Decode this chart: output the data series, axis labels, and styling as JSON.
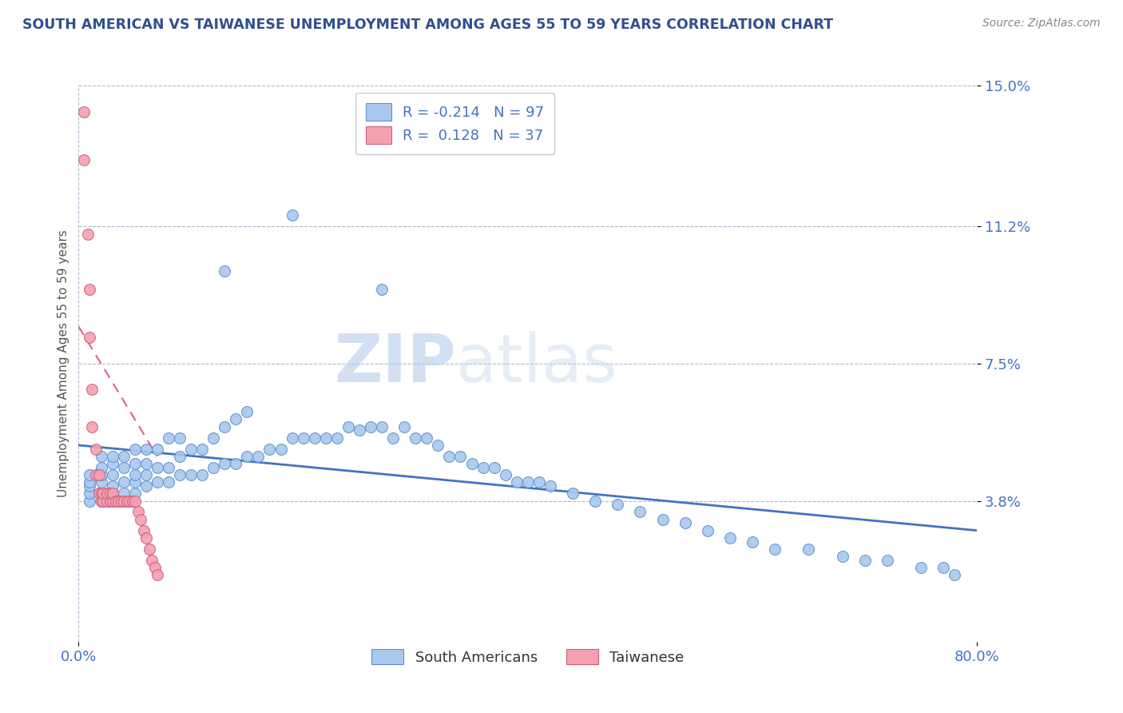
{
  "title": "SOUTH AMERICAN VS TAIWANESE UNEMPLOYMENT AMONG AGES 55 TO 59 YEARS CORRELATION CHART",
  "source_text": "Source: ZipAtlas.com",
  "watermark_zip": "ZIP",
  "watermark_atlas": "atlas",
  "ylabel": "Unemployment Among Ages 55 to 59 years",
  "xlim": [
    0.0,
    0.8
  ],
  "ylim": [
    0.0,
    0.15
  ],
  "ytick_positions": [
    0.038,
    0.075,
    0.112,
    0.15
  ],
  "ytick_labels": [
    "3.8%",
    "7.5%",
    "11.2%",
    "15.0%"
  ],
  "title_color": "#2F4F8F",
  "source_color": "#888888",
  "watermark_color": "#C8D8F0",
  "south_american_color": "#A8C8EE",
  "taiwanese_color": "#F4A0B0",
  "blue_line_color": "#4472C4",
  "pink_line_color": "#E06080",
  "legend_R_blue": "-0.214",
  "legend_N_blue": "97",
  "legend_R_pink": "0.128",
  "legend_N_pink": "37",
  "sa_x": [
    0.01,
    0.01,
    0.01,
    0.01,
    0.01,
    0.02,
    0.02,
    0.02,
    0.02,
    0.02,
    0.02,
    0.03,
    0.03,
    0.03,
    0.03,
    0.03,
    0.04,
    0.04,
    0.04,
    0.04,
    0.05,
    0.05,
    0.05,
    0.05,
    0.05,
    0.06,
    0.06,
    0.06,
    0.06,
    0.07,
    0.07,
    0.07,
    0.08,
    0.08,
    0.08,
    0.09,
    0.09,
    0.09,
    0.1,
    0.1,
    0.11,
    0.11,
    0.12,
    0.12,
    0.13,
    0.13,
    0.14,
    0.14,
    0.15,
    0.15,
    0.16,
    0.17,
    0.18,
    0.19,
    0.2,
    0.21,
    0.22,
    0.23,
    0.24,
    0.25,
    0.26,
    0.27,
    0.28,
    0.29,
    0.3,
    0.31,
    0.32,
    0.33,
    0.34,
    0.35,
    0.36,
    0.37,
    0.38,
    0.39,
    0.4,
    0.41,
    0.42,
    0.44,
    0.46,
    0.48,
    0.5,
    0.52,
    0.54,
    0.56,
    0.58,
    0.6,
    0.62,
    0.65,
    0.68,
    0.7,
    0.72,
    0.75,
    0.77,
    0.78,
    0.13,
    0.19,
    0.27
  ],
  "sa_y": [
    0.038,
    0.04,
    0.042,
    0.043,
    0.045,
    0.038,
    0.04,
    0.043,
    0.045,
    0.047,
    0.05,
    0.04,
    0.042,
    0.045,
    0.048,
    0.05,
    0.04,
    0.043,
    0.047,
    0.05,
    0.04,
    0.043,
    0.045,
    0.048,
    0.052,
    0.042,
    0.045,
    0.048,
    0.052,
    0.043,
    0.047,
    0.052,
    0.043,
    0.047,
    0.055,
    0.045,
    0.05,
    0.055,
    0.045,
    0.052,
    0.045,
    0.052,
    0.047,
    0.055,
    0.048,
    0.058,
    0.048,
    0.06,
    0.05,
    0.062,
    0.05,
    0.052,
    0.052,
    0.055,
    0.055,
    0.055,
    0.055,
    0.055,
    0.058,
    0.057,
    0.058,
    0.058,
    0.055,
    0.058,
    0.055,
    0.055,
    0.053,
    0.05,
    0.05,
    0.048,
    0.047,
    0.047,
    0.045,
    0.043,
    0.043,
    0.043,
    0.042,
    0.04,
    0.038,
    0.037,
    0.035,
    0.033,
    0.032,
    0.03,
    0.028,
    0.027,
    0.025,
    0.025,
    0.023,
    0.022,
    0.022,
    0.02,
    0.02,
    0.018,
    0.1,
    0.115,
    0.095
  ],
  "tw_x": [
    0.005,
    0.005,
    0.008,
    0.01,
    0.01,
    0.012,
    0.012,
    0.015,
    0.015,
    0.018,
    0.018,
    0.02,
    0.02,
    0.022,
    0.022,
    0.025,
    0.025,
    0.028,
    0.028,
    0.03,
    0.03,
    0.033,
    0.035,
    0.038,
    0.04,
    0.043,
    0.045,
    0.048,
    0.05,
    0.053,
    0.055,
    0.058,
    0.06,
    0.063,
    0.065,
    0.068,
    0.07
  ],
  "tw_y": [
    0.143,
    0.13,
    0.11,
    0.095,
    0.082,
    0.068,
    0.058,
    0.052,
    0.045,
    0.045,
    0.04,
    0.04,
    0.038,
    0.038,
    0.04,
    0.038,
    0.04,
    0.038,
    0.04,
    0.038,
    0.04,
    0.038,
    0.038,
    0.038,
    0.038,
    0.038,
    0.038,
    0.038,
    0.038,
    0.035,
    0.033,
    0.03,
    0.028,
    0.025,
    0.022,
    0.02,
    0.018
  ],
  "blue_trend_x": [
    0.0,
    0.8
  ],
  "blue_trend_y": [
    0.053,
    0.03
  ],
  "pink_trend_x": [
    0.0,
    0.07
  ],
  "pink_trend_y": [
    0.085,
    0.05
  ]
}
